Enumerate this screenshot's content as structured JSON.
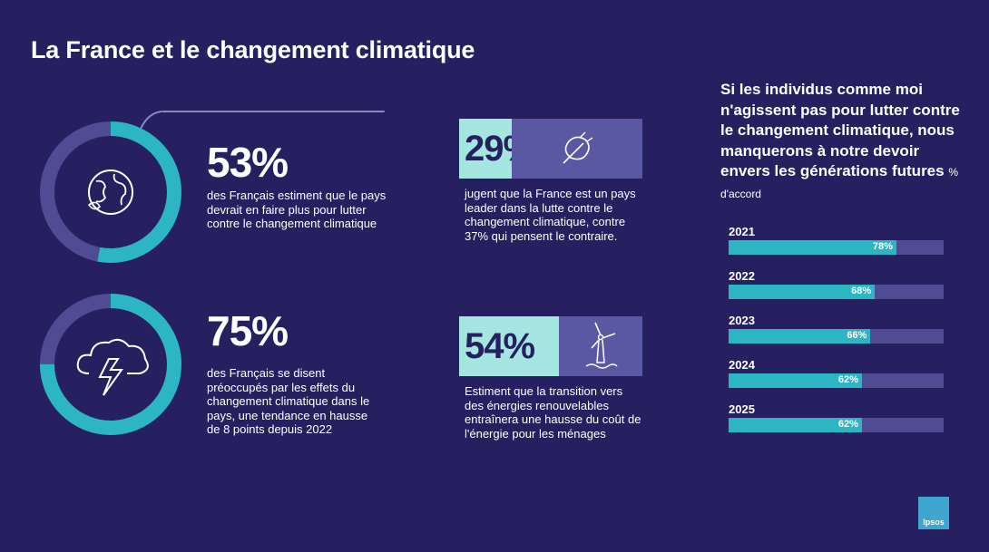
{
  "title": "La France et le changement climatique",
  "colors": {
    "background": "#262061",
    "accent_teal": "#2cb5c2",
    "highlight": "#a5e6e0",
    "track": "#4f4c94",
    "panel": "#5a58a3"
  },
  "stats": [
    {
      "value": "53%",
      "fraction": 0.53,
      "icon": "globe-icon",
      "text": "des Français estiment que le pays devrait en faire plus pour lutter contre le changement climatique"
    },
    {
      "value": "75%",
      "fraction": 0.75,
      "icon": "storm-cloud-icon",
      "text": "des Français se disent préoccupés par les effets du changement climatique dans le pays, une tendance en hausse de 8 points depuis 2022"
    }
  ],
  "boxes": [
    {
      "value": "29%",
      "icon": "leaf-icon",
      "text": "jugent que la France est un pays leader dans la lutte contre le changement climatique, contre 37% qui pensent le contraire."
    },
    {
      "value": "54%",
      "icon": "wind-turbine-icon",
      "text": "Estiment que la transition vers des énergies renouvelables entraînera une hausse du coût de l'énergie pour les ménages"
    }
  ],
  "right_panel": {
    "title": "Si les individus comme moi n'agissent pas pour lutter contre le changement climatique, nous manquerons à notre devoir envers les générations futures",
    "unit": "% d'accord"
  },
  "chart_data": {
    "type": "bar",
    "orientation": "horizontal",
    "categories": [
      "2021",
      "2022",
      "2023",
      "2024",
      "2025"
    ],
    "values": [
      78,
      68,
      66,
      62,
      62
    ],
    "value_labels": [
      "78%",
      "68%",
      "66%",
      "62%",
      "62%"
    ],
    "xlim": [
      0,
      100
    ],
    "unit": "% d'accord"
  },
  "logo_text": "Ipsos"
}
